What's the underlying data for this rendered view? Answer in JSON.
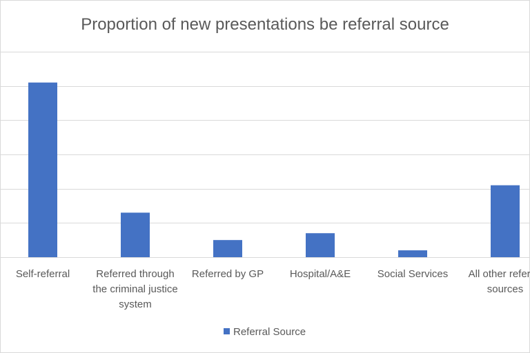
{
  "chart_data": {
    "type": "bar",
    "title": "Proportion of new presentations be referral source",
    "categories": [
      "Self-referral",
      "Referred through the criminal justice system",
      "Referred by GP",
      "Hospital/A&E",
      "Social Services",
      "All other referral sources"
    ],
    "series": [
      {
        "name": "Referral Source",
        "color": "#4472c4",
        "values": [
          51,
          13,
          5,
          7,
          2,
          21
        ]
      }
    ],
    "ylim": [
      0,
      60
    ],
    "yticks": [
      0,
      10,
      20,
      30,
      40,
      50,
      60
    ],
    "grid": true,
    "legend": "bottom"
  }
}
